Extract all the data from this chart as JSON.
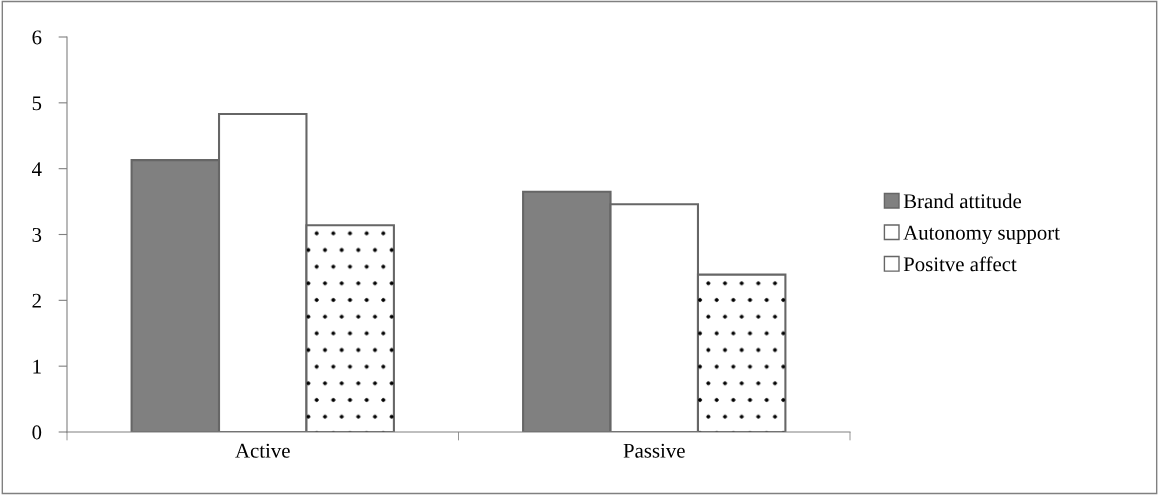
{
  "chart_data": {
    "type": "bar",
    "categories": [
      "Active",
      "Passive"
    ],
    "series": [
      {
        "name": "Brand attitude",
        "color": "#808080",
        "values": [
          4.13,
          3.65
        ]
      },
      {
        "name": "Autonomy support",
        "color": "#ffffff",
        "values": [
          4.83,
          3.46
        ]
      },
      {
        "name": "Positve affect",
        "color": "#ffffff",
        "values": [
          3.14,
          2.39
        ]
      }
    ],
    "ylim": [
      0,
      6
    ],
    "yticks": [
      0,
      1,
      2,
      3,
      4,
      5,
      6
    ],
    "grid": false,
    "legend": "right"
  }
}
